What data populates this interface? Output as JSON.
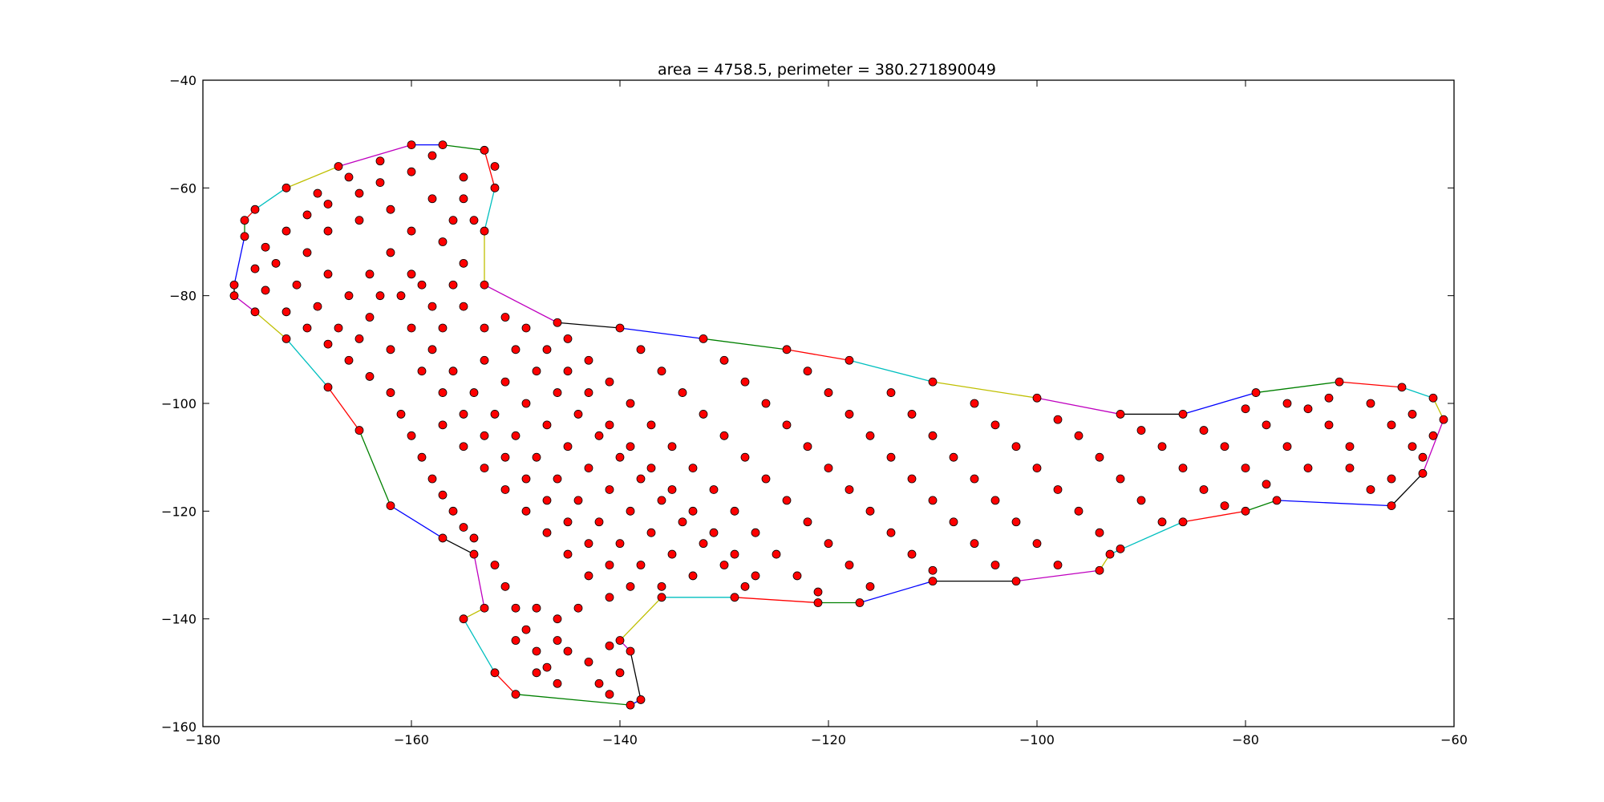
{
  "chart_data": {
    "type": "scatter",
    "title": "area = 4758.5, perimeter = 380.271890049",
    "xlabel": "",
    "ylabel": "",
    "xlim": [
      -180,
      -60
    ],
    "ylim": [
      -160,
      -40
    ],
    "xticks": [
      -180,
      -160,
      -140,
      -120,
      -100,
      -80,
      -60
    ],
    "yticks": [
      -40,
      -60,
      -80,
      -100,
      -120,
      -140,
      -160
    ],
    "grid": false,
    "marker_color": "#ff0000",
    "marker_edge_color": "#000000",
    "hull_edge_colors": [
      "#0000ff",
      "#008000",
      "#ff0000",
      "#00bfbf",
      "#bfbf00",
      "#bf00bf",
      "#000000"
    ],
    "hull": [
      [
        -160,
        -52
      ],
      [
        -157,
        -52
      ],
      [
        -153,
        -53
      ],
      [
        -152,
        -60
      ],
      [
        -153,
        -68
      ],
      [
        -153,
        -78
      ],
      [
        -146,
        -85
      ],
      [
        -140,
        -86
      ],
      [
        -132,
        -88
      ],
      [
        -124,
        -90
      ],
      [
        -118,
        -92
      ],
      [
        -110,
        -96
      ],
      [
        -100,
        -99
      ],
      [
        -92,
        -102
      ],
      [
        -86,
        -102
      ],
      [
        -79,
        -98
      ],
      [
        -71,
        -96
      ],
      [
        -65,
        -97
      ],
      [
        -62,
        -99
      ],
      [
        -61,
        -103
      ],
      [
        -63,
        -113
      ],
      [
        -66,
        -119
      ],
      [
        -77,
        -118
      ],
      [
        -80,
        -120
      ],
      [
        -86,
        -122
      ],
      [
        -93,
        -128
      ],
      [
        -94,
        -131
      ],
      [
        -102,
        -133
      ],
      [
        -110,
        -133
      ],
      [
        -117,
        -137
      ],
      [
        -121,
        -137
      ],
      [
        -129,
        -136
      ],
      [
        -136,
        -136
      ],
      [
        -140,
        -144
      ],
      [
        -139,
        -146
      ],
      [
        -138,
        -155
      ],
      [
        -139,
        -156
      ],
      [
        -150,
        -154
      ],
      [
        -152,
        -150
      ],
      [
        -155,
        -140
      ],
      [
        -153,
        -138
      ],
      [
        -154,
        -128
      ],
      [
        -157,
        -125
      ],
      [
        -162,
        -119
      ],
      [
        -165,
        -105
      ],
      [
        -168,
        -97
      ],
      [
        -172,
        -88
      ],
      [
        -175,
        -83
      ],
      [
        -177,
        -80
      ],
      [
        -177,
        -78
      ],
      [
        -176,
        -69
      ],
      [
        -176,
        -66
      ],
      [
        -175,
        -64
      ],
      [
        -172,
        -60
      ],
      [
        -167,
        -56
      ]
    ],
    "inside_points": [
      [
        -158,
        -54
      ],
      [
        -160,
        -57
      ],
      [
        -163,
        -59
      ],
      [
        -165,
        -61
      ],
      [
        -168,
        -63
      ],
      [
        -170,
        -65
      ],
      [
        -172,
        -68
      ],
      [
        -174,
        -71
      ],
      [
        -175,
        -75
      ],
      [
        -174,
        -79
      ],
      [
        -172,
        -83
      ],
      [
        -170,
        -86
      ],
      [
        -168,
        -89
      ],
      [
        -166,
        -92
      ],
      [
        -164,
        -95
      ],
      [
        -162,
        -98
      ],
      [
        -161,
        -102
      ],
      [
        -160,
        -106
      ],
      [
        -159,
        -110
      ],
      [
        -158,
        -114
      ],
      [
        -157,
        -117
      ],
      [
        -156,
        -120
      ],
      [
        -155,
        -123
      ],
      [
        -154,
        -125
      ],
      [
        -152,
        -130
      ],
      [
        -151,
        -134
      ],
      [
        -150,
        -138
      ],
      [
        -149,
        -142
      ],
      [
        -148,
        -146
      ],
      [
        -147,
        -149
      ],
      [
        -146,
        -144
      ],
      [
        -145,
        -146
      ],
      [
        -143,
        -148
      ],
      [
        -142,
        -152
      ],
      [
        -155,
        -58
      ],
      [
        -155,
        -62
      ],
      [
        -156,
        -66
      ],
      [
        -157,
        -70
      ],
      [
        -155,
        -74
      ],
      [
        -156,
        -78
      ],
      [
        -158,
        -82
      ],
      [
        -160,
        -86
      ],
      [
        -162,
        -90
      ],
      [
        -164,
        -84
      ],
      [
        -166,
        -80
      ],
      [
        -168,
        -76
      ],
      [
        -170,
        -72
      ],
      [
        -168,
        -68
      ],
      [
        -165,
        -66
      ],
      [
        -162,
        -64
      ],
      [
        -160,
        -68
      ],
      [
        -158,
        -62
      ],
      [
        -162,
        -72
      ],
      [
        -164,
        -76
      ],
      [
        -160,
        -76
      ],
      [
        -158,
        -90
      ],
      [
        -156,
        -94
      ],
      [
        -154,
        -98
      ],
      [
        -152,
        -102
      ],
      [
        -150,
        -106
      ],
      [
        -148,
        -110
      ],
      [
        -146,
        -114
      ],
      [
        -144,
        -118
      ],
      [
        -142,
        -122
      ],
      [
        -140,
        -126
      ],
      [
        -138,
        -130
      ],
      [
        -136,
        -134
      ],
      [
        -150,
        -90
      ],
      [
        -148,
        -94
      ],
      [
        -146,
        -98
      ],
      [
        -144,
        -102
      ],
      [
        -142,
        -106
      ],
      [
        -140,
        -110
      ],
      [
        -138,
        -114
      ],
      [
        -136,
        -118
      ],
      [
        -134,
        -122
      ],
      [
        -132,
        -126
      ],
      [
        -130,
        -130
      ],
      [
        -128,
        -134
      ],
      [
        -145,
        -88
      ],
      [
        -143,
        -92
      ],
      [
        -141,
        -96
      ],
      [
        -139,
        -100
      ],
      [
        -137,
        -104
      ],
      [
        -135,
        -108
      ],
      [
        -133,
        -112
      ],
      [
        -131,
        -116
      ],
      [
        -129,
        -120
      ],
      [
        -127,
        -124
      ],
      [
        -125,
        -128
      ],
      [
        -123,
        -132
      ],
      [
        -121,
        -135
      ],
      [
        -138,
        -90
      ],
      [
        -136,
        -94
      ],
      [
        -134,
        -98
      ],
      [
        -132,
        -102
      ],
      [
        -130,
        -106
      ],
      [
        -128,
        -110
      ],
      [
        -126,
        -114
      ],
      [
        -124,
        -118
      ],
      [
        -122,
        -122
      ],
      [
        -120,
        -126
      ],
      [
        -118,
        -130
      ],
      [
        -116,
        -134
      ],
      [
        -130,
        -92
      ],
      [
        -128,
        -96
      ],
      [
        -126,
        -100
      ],
      [
        -124,
        -104
      ],
      [
        -122,
        -108
      ],
      [
        -120,
        -112
      ],
      [
        -118,
        -116
      ],
      [
        -116,
        -120
      ],
      [
        -114,
        -124
      ],
      [
        -112,
        -128
      ],
      [
        -110,
        -131
      ],
      [
        -122,
        -94
      ],
      [
        -120,
        -98
      ],
      [
        -118,
        -102
      ],
      [
        -116,
        -106
      ],
      [
        -114,
        -110
      ],
      [
        -112,
        -114
      ],
      [
        -110,
        -118
      ],
      [
        -108,
        -122
      ],
      [
        -106,
        -126
      ],
      [
        -104,
        -130
      ],
      [
        -114,
        -98
      ],
      [
        -112,
        -102
      ],
      [
        -110,
        -106
      ],
      [
        -108,
        -110
      ],
      [
        -106,
        -114
      ],
      [
        -104,
        -118
      ],
      [
        -102,
        -122
      ],
      [
        -100,
        -126
      ],
      [
        -98,
        -130
      ],
      [
        -106,
        -100
      ],
      [
        -104,
        -104
      ],
      [
        -102,
        -108
      ],
      [
        -100,
        -112
      ],
      [
        -98,
        -116
      ],
      [
        -96,
        -120
      ],
      [
        -94,
        -124
      ],
      [
        -92,
        -127
      ],
      [
        -98,
        -103
      ],
      [
        -96,
        -106
      ],
      [
        -94,
        -110
      ],
      [
        -92,
        -114
      ],
      [
        -90,
        -118
      ],
      [
        -88,
        -122
      ],
      [
        -90,
        -105
      ],
      [
        -88,
        -108
      ],
      [
        -86,
        -112
      ],
      [
        -84,
        -116
      ],
      [
        -82,
        -119
      ],
      [
        -84,
        -105
      ],
      [
        -82,
        -108
      ],
      [
        -80,
        -112
      ],
      [
        -78,
        -115
      ],
      [
        -78,
        -104
      ],
      [
        -76,
        -108
      ],
      [
        -74,
        -112
      ],
      [
        -74,
        -101
      ],
      [
        -72,
        -104
      ],
      [
        -70,
        -108
      ],
      [
        -70,
        -112
      ],
      [
        -68,
        -100
      ],
      [
        -66,
        -104
      ],
      [
        -64,
        -108
      ],
      [
        -66,
        -114
      ],
      [
        -68,
        -116
      ],
      [
        -64,
        -102
      ],
      [
        -62,
        -106
      ],
      [
        -63,
        -110
      ],
      [
        -72,
        -99
      ],
      [
        -76,
        -100
      ],
      [
        -80,
        -101
      ],
      [
        -152,
        -56
      ],
      [
        -154,
        -66
      ],
      [
        -163,
        -55
      ],
      [
        -166,
        -58
      ],
      [
        -169,
        -61
      ],
      [
        -173,
        -74
      ],
      [
        -171,
        -78
      ],
      [
        -169,
        -82
      ],
      [
        -167,
        -86
      ],
      [
        -165,
        -88
      ],
      [
        -163,
        -80
      ],
      [
        -161,
        -80
      ],
      [
        -159,
        -78
      ],
      [
        -157,
        -86
      ],
      [
        -155,
        -82
      ],
      [
        -153,
        -86
      ],
      [
        -151,
        -84
      ],
      [
        -149,
        -86
      ],
      [
        -147,
        -90
      ],
      [
        -145,
        -94
      ],
      [
        -143,
        -98
      ],
      [
        -141,
        -104
      ],
      [
        -139,
        -108
      ],
      [
        -137,
        -112
      ],
      [
        -135,
        -116
      ],
      [
        -133,
        -120
      ],
      [
        -131,
        -124
      ],
      [
        -129,
        -128
      ],
      [
        -127,
        -132
      ],
      [
        -153,
        -92
      ],
      [
        -151,
        -96
      ],
      [
        -149,
        -100
      ],
      [
        -147,
        -104
      ],
      [
        -145,
        -108
      ],
      [
        -143,
        -112
      ],
      [
        -141,
        -116
      ],
      [
        -139,
        -120
      ],
      [
        -137,
        -124
      ],
      [
        -135,
        -128
      ],
      [
        -133,
        -132
      ],
      [
        -157,
        -98
      ],
      [
        -155,
        -102
      ],
      [
        -153,
        -106
      ],
      [
        -151,
        -110
      ],
      [
        -149,
        -114
      ],
      [
        -147,
        -118
      ],
      [
        -145,
        -122
      ],
      [
        -143,
        -126
      ],
      [
        -141,
        -130
      ],
      [
        -139,
        -134
      ],
      [
        -159,
        -94
      ],
      [
        -157,
        -104
      ],
      [
        -155,
        -108
      ],
      [
        -153,
        -112
      ],
      [
        -151,
        -116
      ],
      [
        -149,
        -120
      ],
      [
        -147,
        -124
      ],
      [
        -145,
        -128
      ],
      [
        -143,
        -132
      ],
      [
        -141,
        -136
      ],
      [
        -148,
        -138
      ],
      [
        -146,
        -140
      ],
      [
        -144,
        -138
      ],
      [
        -150,
        -144
      ],
      [
        -148,
        -150
      ],
      [
        -146,
        -152
      ],
      [
        -141,
        -145
      ],
      [
        -140,
        -150
      ],
      [
        -141,
        -154
      ]
    ]
  }
}
